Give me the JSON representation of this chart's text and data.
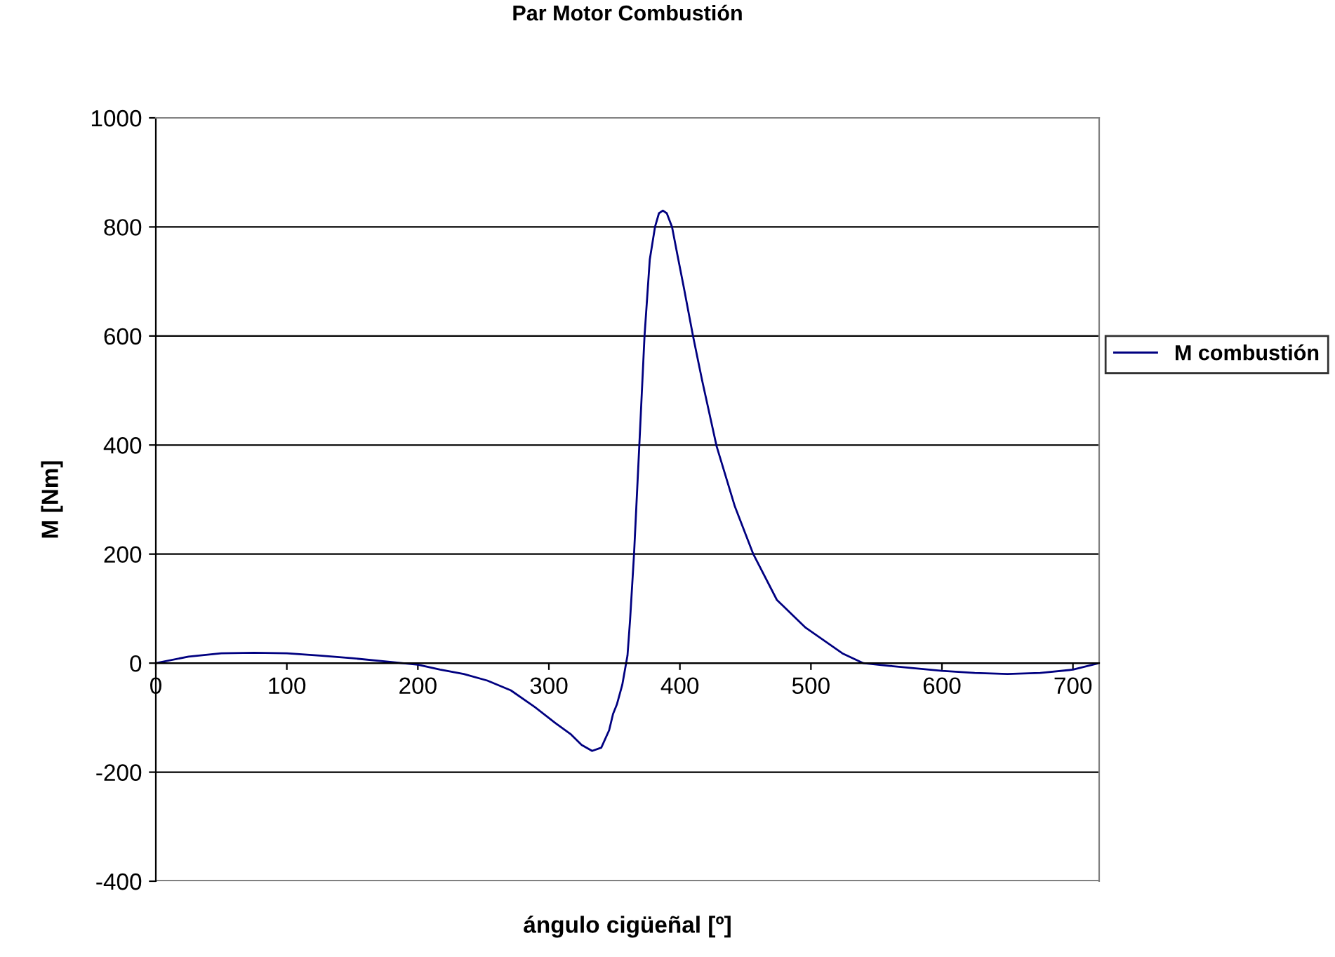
{
  "chart_data": {
    "type": "line",
    "title": "Par Motor Combustión",
    "xlabel": "ángulo cigüeñal [º]",
    "ylabel": "M [Nm]",
    "xlim": [
      0,
      720
    ],
    "xticks": [
      0,
      100,
      200,
      300,
      400,
      500,
      600,
      700
    ],
    "ylim": [
      -400,
      1000
    ],
    "yticks": [
      -400,
      -200,
      0,
      200,
      400,
      600,
      800,
      1000
    ],
    "grid": "y",
    "legend": "right",
    "marker": "none",
    "line_style": "solid",
    "series": [
      {
        "name": "M combustión",
        "color": "#000080",
        "x": [
          0,
          25,
          50,
          75,
          100,
          125,
          150,
          180,
          200,
          217,
          235,
          253,
          271,
          289,
          305,
          317,
          325,
          333,
          340,
          346,
          349,
          352,
          356,
          360,
          362,
          365,
          369,
          373,
          377,
          381,
          384,
          387,
          390,
          394,
          398,
          403,
          410,
          417,
          428,
          442,
          456,
          474,
          496,
          524,
          540,
          560,
          600,
          625,
          650,
          675,
          700,
          720
        ],
        "values": [
          0,
          12,
          18,
          19,
          18,
          14,
          9,
          2,
          -3,
          -12,
          -20,
          -32,
          -50,
          -80,
          -110,
          -131,
          -150,
          -161,
          -155,
          -123,
          -93,
          -75,
          -40,
          14,
          80,
          200,
          398,
          600,
          740,
          800,
          825,
          830,
          825,
          800,
          750,
          689,
          600,
          518,
          398,
          287,
          200,
          116,
          65,
          18,
          0,
          -5,
          -14,
          -18,
          -20,
          -18,
          -12,
          0
        ]
      }
    ]
  }
}
